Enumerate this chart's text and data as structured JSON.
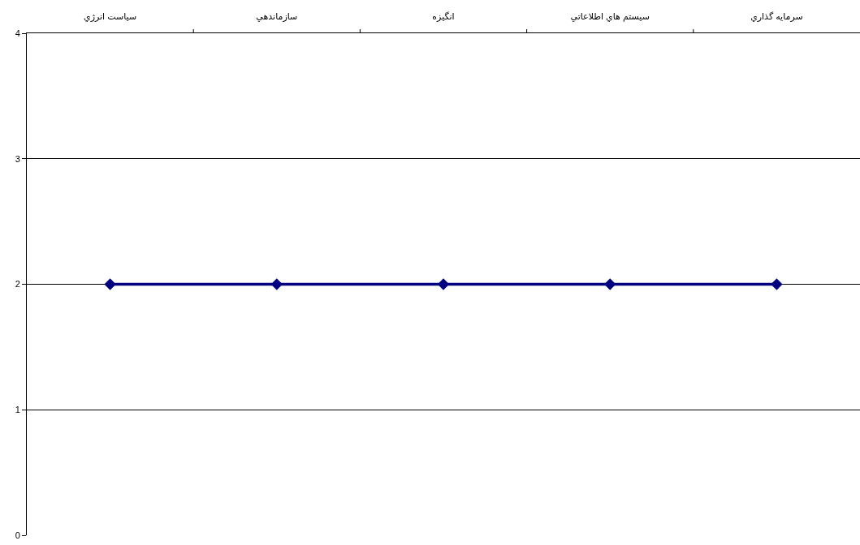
{
  "chart_data": {
    "type": "line",
    "categories": [
      "سياست انرژي",
      "سازماندهي",
      "انگيزه",
      "سيستم هاي اطلاعاتي",
      "سرمايه گذاري"
    ],
    "series": [
      {
        "color": "#000080",
        "values": [
          2,
          2,
          2,
          2,
          2
        ]
      }
    ],
    "ylim": [
      0,
      4
    ],
    "yticks": [
      0,
      1,
      2,
      3,
      4
    ],
    "grid": "y",
    "marker": "diamond",
    "line_style": "solid",
    "legend": false
  }
}
